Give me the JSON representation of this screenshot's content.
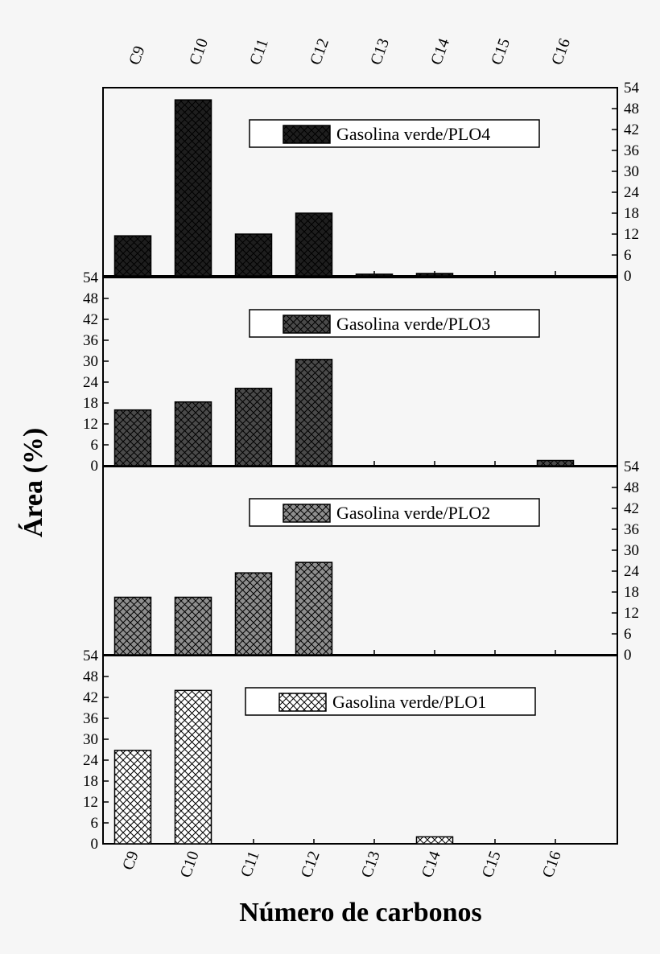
{
  "chart_data": {
    "type": "bar",
    "categories": [
      "C9",
      "C10",
      "C11",
      "C12",
      "C13",
      "C14",
      "C15",
      "C16"
    ],
    "xlabel": "Número de carbonos",
    "ylabel": "Área (%)",
    "ylim": [
      0,
      54
    ],
    "yticks": [
      0,
      6,
      12,
      18,
      24,
      30,
      36,
      42,
      48,
      54
    ],
    "series": [
      {
        "name": "Gasolina verde/PLO4",
        "values": [
          11.5,
          50.5,
          12,
          18,
          0.5,
          0.7,
          0,
          0
        ],
        "fill": "#1e1e1e",
        "y_axis_side": "right"
      },
      {
        "name": "Gasolina verde/PLO3",
        "values": [
          16,
          18.3,
          22.2,
          30.5,
          0,
          0,
          0,
          1.5
        ],
        "fill": "#4a4a4a",
        "y_axis_side": "left"
      },
      {
        "name": "Gasolina verde/PLO2",
        "values": [
          16.5,
          16.5,
          23.5,
          26.5,
          0,
          0,
          0,
          0
        ],
        "fill": "#8e8e8e",
        "y_axis_side": "right"
      },
      {
        "name": "Gasolina verde/PLO1",
        "values": [
          26.8,
          44,
          0,
          0,
          0,
          2,
          0,
          0
        ],
        "fill": "#ffffff",
        "y_axis_side": "left"
      }
    ],
    "grid": false,
    "legend": "top-center"
  }
}
